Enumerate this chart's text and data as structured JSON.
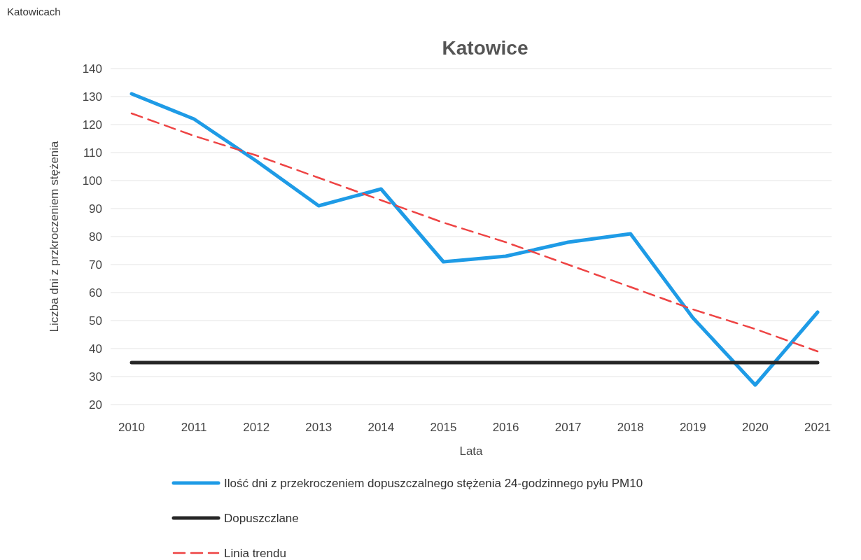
{
  "chart_data": {
    "type": "line",
    "title": "Katowice",
    "xlabel": "Lata",
    "ylabel": "Liczba dni z przkroczeniem stężenia",
    "annotations": [
      "Katowicach"
    ],
    "categories": [
      "2010",
      "2011",
      "2012",
      "2013",
      "2014",
      "2015",
      "2016",
      "2017",
      "2018",
      "2019",
      "2020",
      "2021"
    ],
    "series": [
      {
        "name": "Ilość dni z przekroczeniem dopuszczalnego stężenia 24-godzinnego pyłu PM10",
        "color": "#1e9be6",
        "line_style": "solid",
        "values": [
          131,
          122,
          107,
          91,
          97,
          71,
          73,
          78,
          81,
          51,
          27,
          53
        ]
      },
      {
        "name": "Dopuszczlane",
        "color": "#262626",
        "line_style": "solid",
        "values": [
          35,
          35,
          35,
          35,
          35,
          35,
          35,
          35,
          35,
          35,
          35,
          35
        ]
      },
      {
        "name": "Linia trendu",
        "color": "#ee4444",
        "line_style": "dashed",
        "values": [
          124,
          116,
          109,
          101,
          93,
          85,
          78,
          70,
          62,
          54,
          47,
          39
        ]
      }
    ],
    "ylim": [
      20,
      140
    ],
    "yticks": [
      20,
      30,
      40,
      50,
      60,
      70,
      80,
      90,
      100,
      110,
      120,
      130,
      140
    ],
    "grid": "y",
    "legend": "bottom",
    "marker": "none"
  }
}
